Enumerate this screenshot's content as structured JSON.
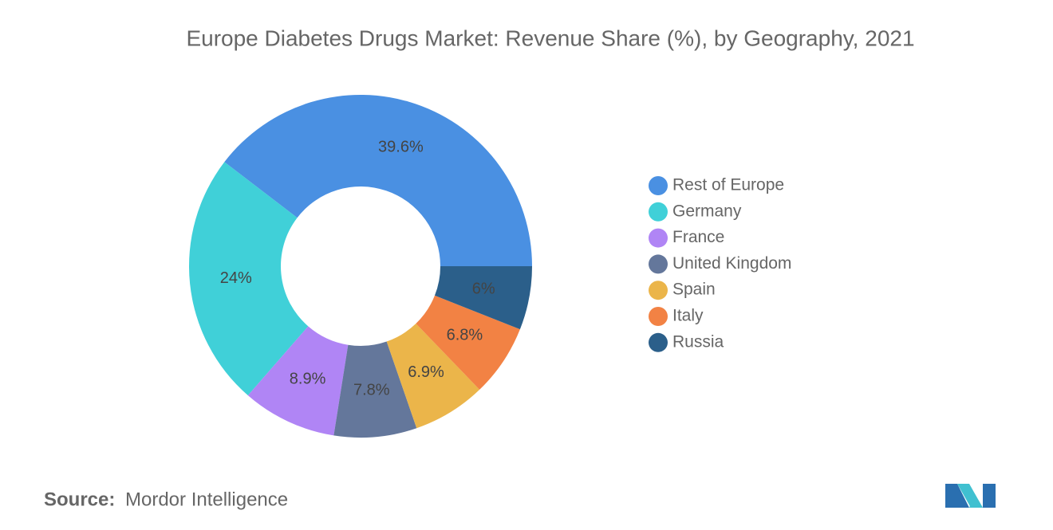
{
  "chart_data": {
    "type": "donut",
    "title": "Europe Diabetes Drugs Market: Revenue Share (%), by Geography, 2021",
    "categories": [
      "Rest of Europe",
      "Germany",
      "France",
      "United Kingdom",
      "Spain",
      "Italy",
      "Russia"
    ],
    "values": [
      39.6,
      24,
      8.9,
      7.8,
      6.9,
      6.8,
      6
    ],
    "value_labels": [
      "39.6%",
      "24%",
      "8.9%",
      "7.8%",
      "6.9%",
      "6.8%",
      "6%"
    ],
    "colors": [
      "#4a90e2",
      "#40d0d8",
      "#b085f5",
      "#64779b",
      "#ebb54a",
      "#f28244",
      "#2b5f8a"
    ],
    "legend": "right",
    "source_label": "Source:",
    "source": "Mordor Intelligence"
  }
}
